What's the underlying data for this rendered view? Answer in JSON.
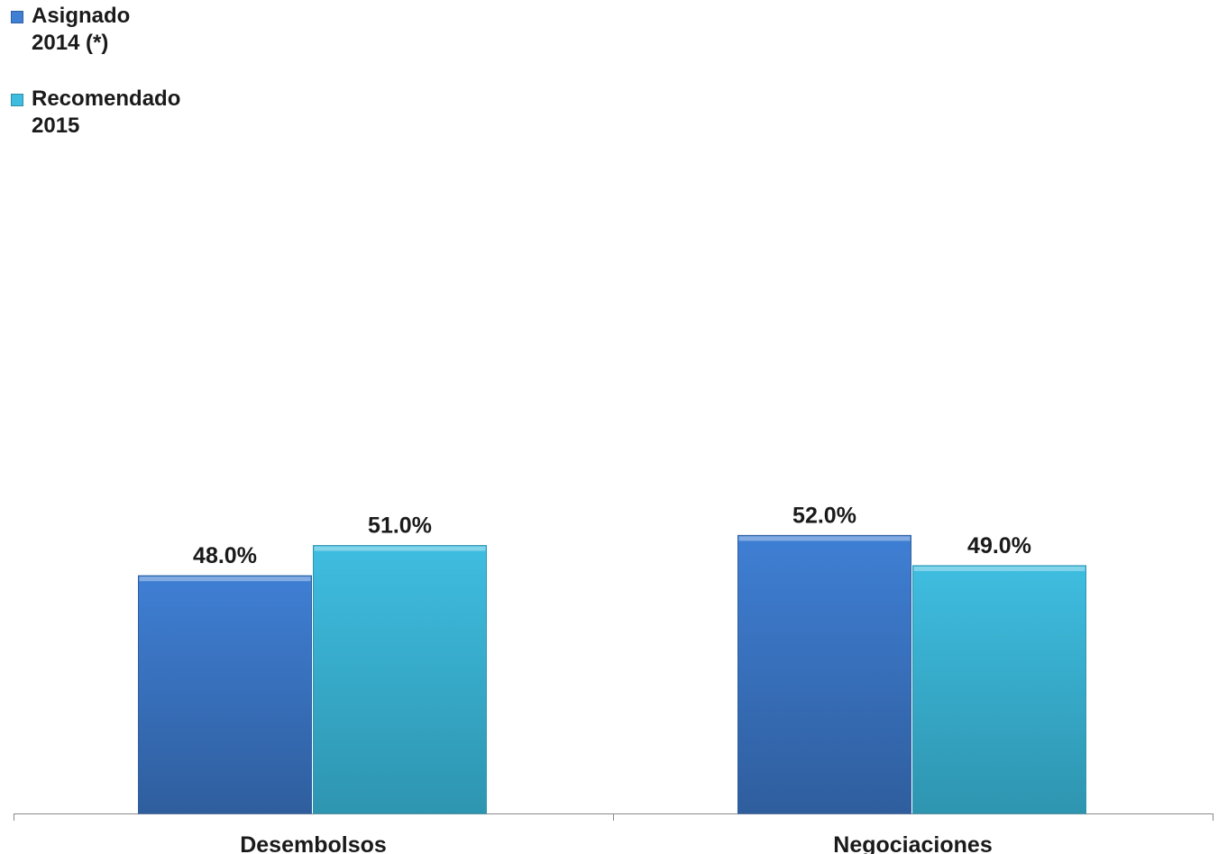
{
  "chart_data": {
    "type": "bar",
    "categories": [
      "Desembolsos",
      "Negociaciones"
    ],
    "series": [
      {
        "name_line1": "Asignado",
        "name_line2": "2014 (*)",
        "values": [
          48.0,
          52.0
        ],
        "color": "#3f7fd4",
        "color_dark": "#2f5e9e"
      },
      {
        "name_line1": "Recomendado",
        "name_line2": "2015",
        "values": [
          51.0,
          49.0
        ],
        "color": "#3fbde0",
        "color_dark": "#2e95b0"
      }
    ],
    "value_labels": [
      [
        "48.0%",
        "52.0%"
      ],
      [
        "51.0%",
        "49.0%"
      ]
    ],
    "value_suffix": "%",
    "legend_position": "top-left",
    "grid": false
  }
}
